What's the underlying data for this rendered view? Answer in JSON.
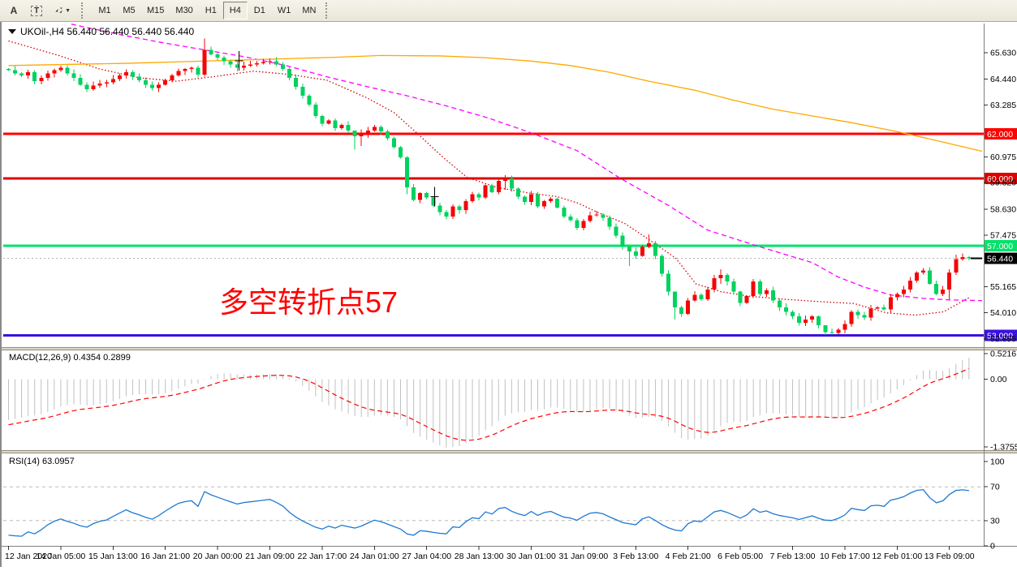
{
  "toolbar": {
    "tools": [
      {
        "id": "draw-text",
        "label": "A"
      },
      {
        "id": "draw-text-label",
        "label": "T"
      },
      {
        "id": "arrow-objects",
        "label": "arrows",
        "has_dropdown": true
      }
    ],
    "timeframes": [
      "M1",
      "M5",
      "M15",
      "M30",
      "H1",
      "H4",
      "D1",
      "W1",
      "MN"
    ],
    "active_timeframe": "H4"
  },
  "chart": {
    "title": "UKOil-,H4 56.440 56.440 56.440 56.440",
    "annotation": "多空转折点57",
    "annotation_color": "#ff0000",
    "macd_label": "MACD(12,26,9) 0.4354 0.2899",
    "rsi_label": "RSI(14) 63.0957"
  },
  "chart_data": {
    "type": "candlestick",
    "symbol": "UKOil-",
    "timeframe": "H4",
    "current_price": 56.44,
    "price_axis": {
      "ylim": [
        52.45,
        66.93
      ],
      "ticks": [
        65.63,
        64.44,
        63.285,
        60.975,
        59.82,
        58.63,
        57.475,
        55.165,
        54.01,
        52.855
      ]
    },
    "time_axis": {
      "labels": [
        "12 Jan 2020",
        "14 Jan 05:00",
        "15 Jan 13:00",
        "16 Jan 21:00",
        "20 Jan 00:00",
        "21 Jan 09:00",
        "22 Jan 17:00",
        "24 Jan 01:00",
        "27 Jan 04:00",
        "28 Jan 13:00",
        "30 Jan 01:00",
        "31 Jan 09:00",
        "3 Feb 13:00",
        "4 Feb 21:00",
        "6 Feb 05:00",
        "7 Feb 13:00",
        "10 Feb 17:00",
        "12 Feb 01:00",
        "13 Feb 09:00"
      ],
      "candles_per_label": 8
    },
    "first_open": 64.9,
    "closes": [
      64.85,
      64.7,
      64.6,
      64.75,
      64.35,
      64.5,
      64.7,
      64.85,
      64.95,
      64.7,
      64.5,
      64.2,
      64.0,
      64.15,
      64.25,
      64.3,
      64.45,
      64.6,
      64.75,
      64.55,
      64.4,
      64.2,
      64.05,
      64.2,
      64.4,
      64.6,
      64.8,
      64.9,
      64.95,
      64.65,
      65.75,
      65.55,
      65.4,
      65.25,
      65.1,
      64.95,
      65.05,
      65.1,
      65.15,
      65.2,
      65.25,
      65.1,
      64.9,
      64.5,
      64.1,
      63.7,
      63.3,
      62.8,
      62.45,
      62.6,
      62.25,
      62.4,
      62.15,
      61.9,
      62.0,
      62.15,
      62.3,
      62.1,
      61.8,
      61.4,
      60.95,
      59.6,
      59.05,
      59.35,
      59.15,
      58.8,
      58.5,
      58.3,
      58.75,
      58.6,
      59.0,
      59.3,
      59.15,
      59.7,
      59.4,
      59.9,
      60.0,
      59.55,
      59.2,
      58.95,
      59.3,
      58.75,
      59.0,
      59.1,
      58.7,
      58.3,
      58.15,
      57.8,
      58.1,
      58.35,
      58.4,
      58.25,
      57.85,
      57.45,
      56.95,
      56.75,
      56.55,
      56.95,
      57.1,
      56.55,
      55.75,
      54.95,
      54.25,
      53.95,
      54.55,
      54.8,
      54.6,
      55.05,
      55.55,
      55.7,
      55.4,
      54.95,
      54.45,
      54.75,
      55.4,
      54.85,
      55.0,
      54.55,
      54.25,
      54.05,
      53.85,
      53.55,
      53.7,
      53.85,
      53.45,
      53.15,
      53.1,
      53.25,
      53.5,
      54.05,
      53.9,
      53.8,
      54.2,
      54.25,
      54.15,
      54.7,
      54.85,
      55.05,
      55.45,
      55.8,
      55.9,
      55.3,
      54.85,
      55.05,
      55.8,
      56.4,
      56.5,
      56.44
    ],
    "wick_overrides": {
      "12": [
        64.3,
        63.86
      ],
      "30": [
        66.25,
        64.55
      ],
      "53": [
        62.15,
        61.3
      ],
      "54": [
        62.2,
        61.45
      ],
      "61": [
        61.0,
        59.3
      ],
      "67": [
        58.6,
        58.18
      ],
      "76": [
        60.15,
        59.5
      ],
      "95": [
        56.95,
        56.1
      ],
      "98": [
        57.5,
        56.9
      ],
      "102": [
        54.4,
        53.7
      ],
      "109": [
        55.95,
        55.3
      ],
      "125": [
        53.4,
        53.02
      ],
      "126": [
        53.3,
        53.04
      ],
      "135": [
        54.85,
        54.0
      ],
      "144": [
        55.95,
        54.6
      ],
      "145": [
        56.6,
        55.7
      ],
      "147": [
        56.55,
        56.35
      ]
    },
    "candle_colors": {
      "bull": "#f50505",
      "bear": "#00d25f"
    },
    "levels": [
      {
        "price": 62.0,
        "label": "62.000",
        "color": "#ff0202",
        "style": "solid"
      },
      {
        "price": 60.0,
        "label": "60.000",
        "color": "#e00000",
        "style": "solid"
      },
      {
        "price": 57.0,
        "label": "57.000",
        "color": "#00e26a",
        "style": "solid"
      },
      {
        "price": 53.0,
        "label": "53.000",
        "color": "#3a10e0",
        "style": "solid"
      },
      {
        "price": 56.44,
        "label": "56.440",
        "color": "#b4b4b4",
        "style": "dotted",
        "badge": "#000000"
      }
    ],
    "moving_averages": [
      {
        "name": "fast",
        "color": "#d40000",
        "style": "dotted",
        "points": [
          [
            0,
            66.15
          ],
          [
            7.7,
            65.5
          ],
          [
            13.9,
            64.9
          ],
          [
            20.1,
            64.5
          ],
          [
            25.7,
            64.35
          ],
          [
            31.3,
            64.55
          ],
          [
            37.5,
            64.8
          ],
          [
            43.1,
            64.65
          ],
          [
            48.7,
            64.4
          ],
          [
            54.9,
            63.6
          ],
          [
            59,
            62.95
          ],
          [
            63,
            61.9
          ],
          [
            66.7,
            60.9
          ],
          [
            70.2,
            60.05
          ],
          [
            74.8,
            59.6
          ],
          [
            79.8,
            59.35
          ],
          [
            83.9,
            59.2
          ],
          [
            87.2,
            58.9
          ],
          [
            90.1,
            58.5
          ],
          [
            94.3,
            58.0
          ],
          [
            98.4,
            57.2
          ],
          [
            102.1,
            56.45
          ],
          [
            105.2,
            55.3
          ],
          [
            109,
            54.95
          ],
          [
            113.3,
            54.75
          ],
          [
            118.3,
            54.62
          ],
          [
            123.2,
            54.52
          ],
          [
            129.4,
            54.42
          ],
          [
            134.4,
            54.0
          ],
          [
            138.8,
            53.9
          ],
          [
            143.1,
            54.05
          ],
          [
            147,
            54.68
          ]
        ]
      },
      {
        "name": "medium",
        "color": "#ff00ff",
        "style": "dashed",
        "points": [
          [
            9.6,
            66.9
          ],
          [
            17.6,
            66.4
          ],
          [
            24,
            66.05
          ],
          [
            30,
            65.75
          ],
          [
            36,
            65.45
          ],
          [
            42.5,
            65.05
          ],
          [
            48.7,
            64.55
          ],
          [
            55,
            64.1
          ],
          [
            61,
            63.7
          ],
          [
            67,
            63.25
          ],
          [
            73.5,
            62.7
          ],
          [
            80.4,
            62.0
          ],
          [
            87,
            61.25
          ],
          [
            93.7,
            60.0
          ],
          [
            101,
            58.8
          ],
          [
            107,
            57.7
          ],
          [
            114.5,
            57.0
          ],
          [
            119,
            56.6
          ],
          [
            123,
            56.25
          ],
          [
            127,
            55.6
          ],
          [
            131,
            55.15
          ],
          [
            135,
            54.8
          ],
          [
            140,
            54.65
          ],
          [
            144,
            54.58
          ],
          [
            149,
            54.55
          ]
        ]
      },
      {
        "name": "slow",
        "color": "#ffa800",
        "style": "solid",
        "points": [
          [
            0,
            65.05
          ],
          [
            18,
            65.15
          ],
          [
            36,
            65.3
          ],
          [
            50,
            65.42
          ],
          [
            57,
            65.5
          ],
          [
            66,
            65.48
          ],
          [
            73,
            65.4
          ],
          [
            80,
            65.25
          ],
          [
            86,
            65.05
          ],
          [
            92,
            64.75
          ],
          [
            98,
            64.35
          ],
          [
            105,
            63.95
          ],
          [
            111,
            63.5
          ],
          [
            117,
            63.1
          ],
          [
            123,
            62.8
          ],
          [
            129,
            62.5
          ],
          [
            136,
            62.1
          ],
          [
            142,
            61.7
          ],
          [
            149,
            61.22
          ]
        ]
      }
    ],
    "macd": {
      "params": [
        12,
        26,
        9
      ],
      "value_main": 0.4354,
      "value_signal": 0.2899,
      "axis_max": 0.5216,
      "axis_zero": "0.00",
      "axis_min": -1.3755,
      "hist_color": "#c0c0c0",
      "signal_color": "#ff0000"
    },
    "rsi": {
      "period": 14,
      "value": 63.0957,
      "levels": [
        30,
        70
      ],
      "axis": [
        0,
        30,
        70,
        100
      ],
      "color": "#1e78d2"
    },
    "indicator_warmup_closes": [
      69.3,
      69.0,
      68.6,
      68.2,
      67.8,
      67.4,
      67.0,
      66.7,
      66.4,
      66.1,
      65.85,
      65.6,
      65.4,
      65.2,
      65.05,
      64.9,
      65.05,
      64.92,
      65.0,
      64.88,
      64.95,
      64.8,
      64.9,
      65.0,
      64.9
    ],
    "marks": [
      {
        "i": 35.3,
        "price": 65.26
      },
      {
        "i": 65.2,
        "price": 59.2
      }
    ]
  }
}
